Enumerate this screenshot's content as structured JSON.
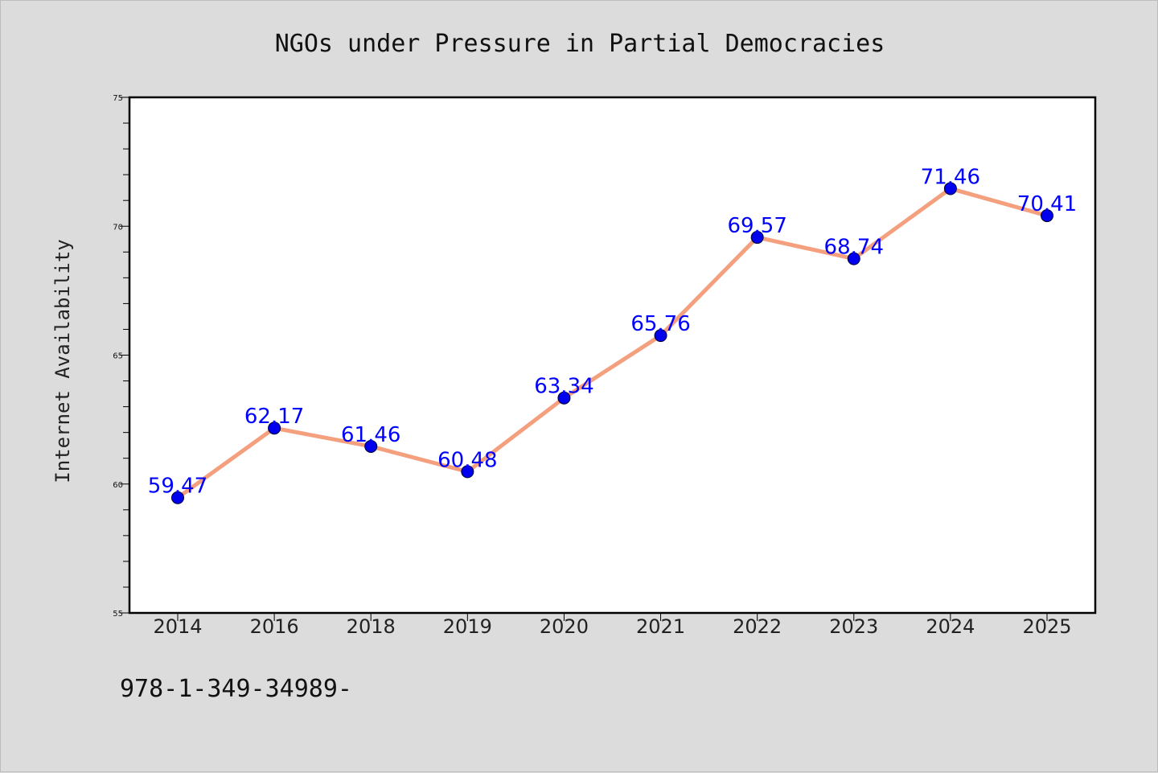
{
  "chart_data": {
    "type": "line",
    "title": "NGOs under Pressure in Partial Democracies",
    "ylabel": "Internet Availability",
    "xlabel": "",
    "categories": [
      "2014",
      "2016",
      "2018",
      "2019",
      "2020",
      "2021",
      "2022",
      "2023",
      "2024",
      "2025"
    ],
    "values": [
      59.47,
      62.17,
      61.46,
      60.48,
      63.34,
      65.76,
      69.57,
      68.74,
      71.46,
      70.41
    ],
    "data_labels": [
      "59.47",
      "62.17",
      "61.46",
      "60.48",
      "63.34",
      "65.76",
      "69.57",
      "68.74",
      "71.46",
      "70.41"
    ],
    "ylim": [
      55,
      75
    ],
    "yticks": [
      55,
      60,
      65,
      70,
      75
    ],
    "ytick_labels": [
      "55",
      "60",
      "65",
      "70",
      "75"
    ],
    "grid": false,
    "legend": "none",
    "colors": {
      "line": "#f4a07e",
      "marker": "#0000ee",
      "label": "#0000ff",
      "background": "#dcdcdc",
      "plot_background": "#ffffff"
    }
  },
  "footer": {
    "text": "978-1-349-34989-"
  }
}
